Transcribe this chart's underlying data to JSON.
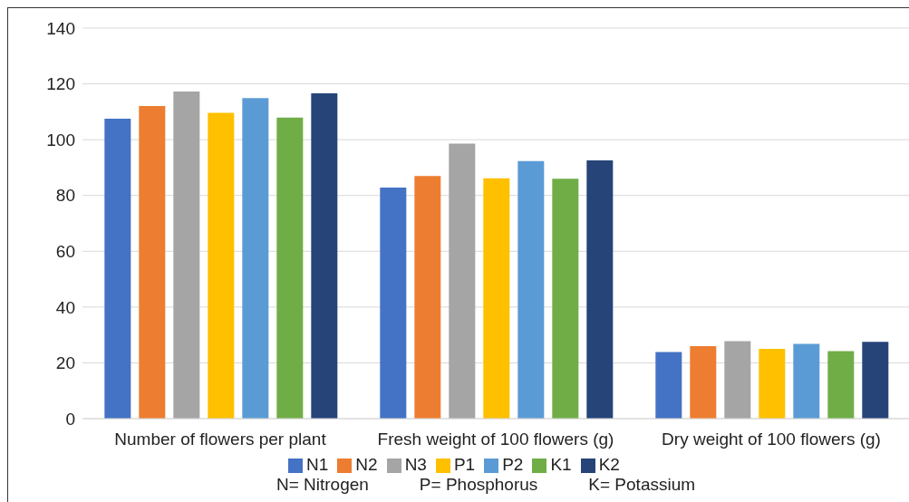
{
  "chart_data": {
    "type": "bar",
    "categories": [
      "Number of flowers per plant",
      "Fresh weight of 100 flowers (g)",
      "Dry weight of 100 flowers (g)"
    ],
    "series": [
      {
        "name": "N1",
        "color": "#4472c4",
        "values": [
          107.5,
          82.8,
          23.9
        ]
      },
      {
        "name": "N2",
        "color": "#ed7d31",
        "values": [
          112.1,
          87.0,
          26.0
        ]
      },
      {
        "name": "N3",
        "color": "#a5a5a5",
        "values": [
          117.3,
          98.6,
          27.8
        ]
      },
      {
        "name": "P1",
        "color": "#ffc000",
        "values": [
          109.6,
          86.2,
          25.0
        ]
      },
      {
        "name": "P2",
        "color": "#5b9bd5",
        "values": [
          114.9,
          92.3,
          26.8
        ]
      },
      {
        "name": "K1",
        "color": "#70ad47",
        "values": [
          107.9,
          86.0,
          24.2
        ]
      },
      {
        "name": "K2",
        "color": "#264478",
        "values": [
          116.6,
          92.6,
          27.5
        ]
      }
    ],
    "ylim": [
      0,
      140
    ],
    "yticks": [
      0,
      20,
      40,
      60,
      80,
      100,
      120,
      140
    ],
    "grid": "y",
    "legend": "bottom",
    "annotations": [
      "N= Nitrogen",
      "P= Phosphorus",
      "K= Potassium"
    ]
  }
}
